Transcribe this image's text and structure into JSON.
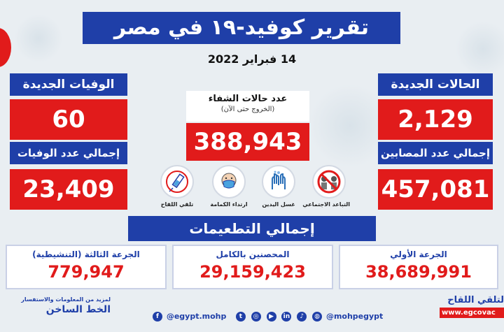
{
  "title": "تقرير كوفيد-١٩ في مصر",
  "date": "14 فبراير 2022",
  "new_cases": {
    "label": "الحالات الجديدة",
    "value": "2,129"
  },
  "total_cases": {
    "label": "إجمالي عدد المصابين",
    "value": "457,081"
  },
  "new_deaths": {
    "label": "الوفيات الجديدة",
    "value": "60"
  },
  "total_deaths": {
    "label": "إجمالي عدد الوفيات",
    "value": "23,409"
  },
  "recovered": {
    "label": "عدد حالات الشفاء",
    "sublabel": "(الخروج حتى الآن)",
    "value": "388,943"
  },
  "precautions": [
    {
      "label": "التباعد الاجتماعي",
      "icon": "social-distancing-icon"
    },
    {
      "label": "غسل اليدين",
      "icon": "hand-washing-icon"
    },
    {
      "label": "ارتداء الكمامة",
      "icon": "face-mask-icon"
    },
    {
      "label": "تلقي اللقاح",
      "icon": "vaccine-icon"
    }
  ],
  "vaccination": {
    "title": "إجمالي التطعيمات",
    "first_dose": {
      "label": "الجرعة الأولي",
      "value": "38,689,991"
    },
    "fully_vaccinated": {
      "label": "المحصنين بالكامل",
      "value": "29,159,423"
    },
    "booster": {
      "label": "الجرعة الثالثة (التنشيطية)",
      "value": "779,947"
    }
  },
  "footer": {
    "left_small": "لمزيد من المعلومات والاستفسار",
    "left_big": "الخط الساخن",
    "social_handle_1": "@egypt.mohp",
    "social_handle_2": "@mohpegypt",
    "right_label": "لتلقي اللقاح",
    "right_url": "www.egcovac"
  },
  "colors": {
    "blue": "#1f3fa8",
    "red": "#e11b1b"
  }
}
